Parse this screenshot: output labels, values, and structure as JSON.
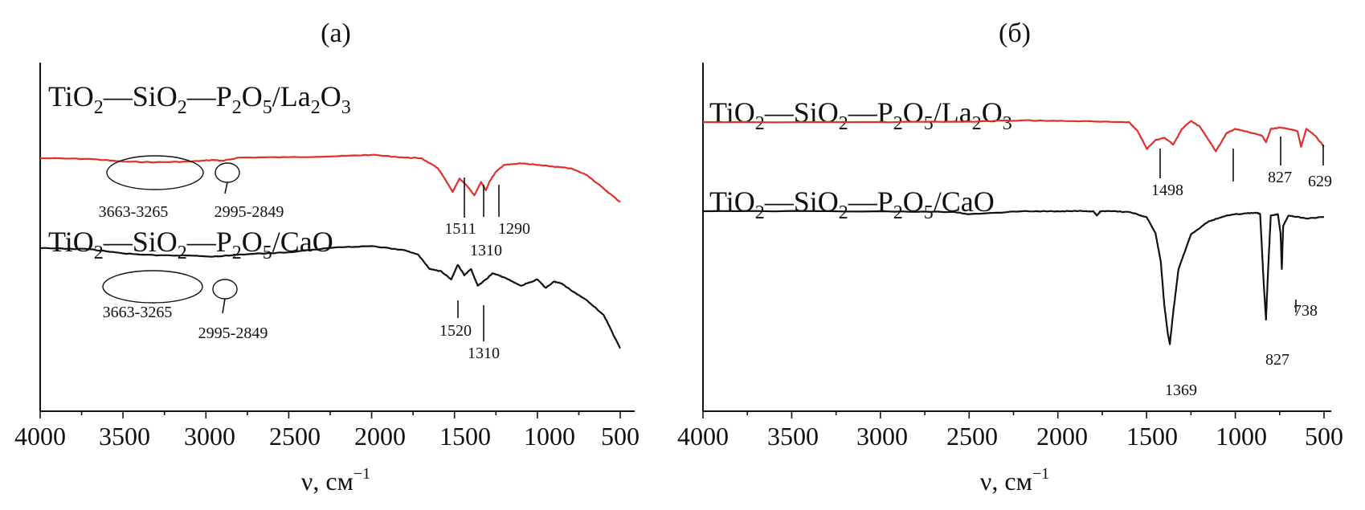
{
  "chart_data": [
    {
      "type": "line",
      "panel": "(a)",
      "xlabel": "ν, см⁻¹",
      "ylabel": "",
      "xlim": [
        4000,
        500
      ],
      "x_reversed": true,
      "y_ticks_shown": false,
      "ticks": [
        "4000",
        "3500",
        "3000",
        "2500",
        "2000",
        "1500",
        "1000",
        "500"
      ],
      "series": [
        {
          "name": "TiO2—SiO2—P2O5/La2O3",
          "color": "#e0302a",
          "x": [
            4000,
            3700,
            3500,
            3300,
            3100,
            2950,
            2900,
            2800,
            2500,
            2200,
            2000,
            1800,
            1700,
            1600,
            1560,
            1511,
            1470,
            1420,
            1380,
            1340,
            1310,
            1290,
            1250,
            1200,
            1100,
            1000,
            900,
            800,
            700,
            600,
            500
          ],
          "y": [
            0.0,
            -0.02,
            -0.1,
            -0.12,
            -0.1,
            -0.05,
            -0.08,
            0.02,
            0.03,
            0.06,
            0.1,
            0.02,
            0.0,
            -0.3,
            -0.6,
            -1.0,
            -0.6,
            -0.85,
            -1.1,
            -0.7,
            -0.95,
            -0.7,
            -0.4,
            -0.2,
            -0.15,
            -0.2,
            -0.25,
            -0.3,
            -0.5,
            -0.9,
            -1.3
          ]
        },
        {
          "name": "TiO2—SiO2—P2O5/CaO",
          "color": "#111111",
          "x": [
            4000,
            3700,
            3500,
            3300,
            3100,
            2950,
            2900,
            2800,
            2500,
            2200,
            2000,
            1800,
            1720,
            1650,
            1580,
            1520,
            1480,
            1440,
            1400,
            1360,
            1310,
            1270,
            1200,
            1100,
            1000,
            950,
            900,
            850,
            800,
            700,
            600,
            550,
            500
          ],
          "y": [
            0.0,
            -0.05,
            -0.25,
            -0.35,
            -0.35,
            -0.4,
            -0.38,
            -0.3,
            -0.2,
            0.05,
            0.1,
            -0.1,
            -0.3,
            -1.0,
            -1.1,
            -1.5,
            -0.8,
            -1.3,
            -1.0,
            -1.8,
            -1.5,
            -1.2,
            -1.4,
            -1.8,
            -1.5,
            -1.9,
            -1.6,
            -1.7,
            -2.0,
            -2.5,
            -3.2,
            -4.0,
            -4.8
          ]
        }
      ],
      "annotations": [
        {
          "text": "3663-3265",
          "series": "La2O3"
        },
        {
          "text": "2995-2849",
          "series": "La2O3"
        },
        {
          "text": "1511",
          "series": "La2O3"
        },
        {
          "text": "1310",
          "series": "La2O3"
        },
        {
          "text": "1290",
          "series": "La2O3"
        },
        {
          "text": "3663-3265",
          "series": "CaO"
        },
        {
          "text": "2995-2849",
          "series": "CaO"
        },
        {
          "text": "1520",
          "series": "CaO"
        },
        {
          "text": "1310",
          "series": "CaO"
        }
      ]
    },
    {
      "type": "line",
      "panel": "(б)",
      "xlabel": "ν, см⁻¹",
      "ylabel": "",
      "xlim": [
        4000,
        500
      ],
      "x_reversed": true,
      "y_ticks_shown": false,
      "ticks": [
        "4000",
        "3500",
        "3000",
        "2500",
        "2000",
        "1500",
        "1000",
        "500"
      ],
      "series": [
        {
          "name": "TiO2—SiO2—P2O5/La2O3",
          "color": "#e0302a",
          "x": [
            4000,
            3000,
            2500,
            2200,
            2000,
            1800,
            1600,
            1550,
            1498,
            1450,
            1400,
            1350,
            1300,
            1250,
            1200,
            1150,
            1110,
            1050,
            1000,
            950,
            900,
            850,
            827,
            800,
            750,
            700,
            650,
            629,
            600,
            550,
            500
          ],
          "y": [
            0.0,
            0.0,
            0.02,
            0.08,
            0.05,
            0.03,
            0.0,
            -0.4,
            -1.2,
            -0.8,
            -0.7,
            -1.0,
            -0.3,
            0.05,
            -0.2,
            -0.8,
            -1.3,
            -0.5,
            -0.3,
            -0.4,
            -0.5,
            -0.6,
            -0.9,
            -0.3,
            -0.25,
            -0.3,
            -0.4,
            -1.1,
            -0.3,
            -0.6,
            -1.1
          ]
        },
        {
          "name": "TiO2—SiO2—P2O5/CaO",
          "color": "#111111",
          "x": [
            4000,
            3000,
            2600,
            2500,
            2200,
            2000,
            1900,
            1800,
            1780,
            1760,
            1700,
            1600,
            1500,
            1450,
            1420,
            1400,
            1380,
            1369,
            1350,
            1320,
            1250,
            1150,
            1050,
            950,
            880,
            860,
            840,
            827,
            815,
            800,
            760,
            745,
            738,
            730,
            700,
            600,
            500
          ],
          "y": [
            0.0,
            0.0,
            -0.05,
            -0.2,
            0.0,
            0.0,
            0.02,
            0.0,
            -0.3,
            0.0,
            0.0,
            -0.05,
            -0.4,
            -1.5,
            -3.5,
            -6.5,
            -8.5,
            -9.2,
            -7.0,
            -4.0,
            -1.6,
            -0.7,
            -0.3,
            -0.15,
            -0.1,
            -0.2,
            -5.0,
            -7.5,
            -4.0,
            -0.3,
            -0.2,
            -1.5,
            -4.0,
            -1.0,
            -0.3,
            -0.5,
            -0.4
          ]
        }
      ],
      "annotations": [
        {
          "text": "1498",
          "series": "La2O3"
        },
        {
          "text": "827",
          "series": "La2O3"
        },
        {
          "text": "629",
          "series": "La2O3"
        },
        {
          "text": "1369",
          "series": "CaO"
        },
        {
          "text": "827",
          "series": "CaO"
        },
        {
          "text": "738",
          "series": "CaO"
        }
      ]
    }
  ],
  "panels": [
    {
      "title": "(a)",
      "xlabel_main": "ν, см",
      "xlabel_sup": "−1",
      "series_labels": {
        "la": {
          "p1": "TiO",
          "s1": "2",
          "p2": "—SiO",
          "s2": "2",
          "p3": "—P",
          "s3": "2",
          "p4": "O",
          "s4": "5",
          "p5": "/La",
          "s5": "2",
          "p6": "O",
          "s6": "3"
        },
        "ca": {
          "p1": "TiO",
          "s1": "2",
          "p2": "—SiO",
          "s2": "2",
          "p3": "—P",
          "s3": "2",
          "p4": "O",
          "s4": "5",
          "p5": "/CaO"
        }
      }
    },
    {
      "title": "(б)",
      "xlabel_main": "ν, см",
      "xlabel_sup": "−1",
      "series_labels": {
        "la": {
          "p1": "TiO",
          "s1": "2",
          "p2": "—SiO",
          "s2": "2",
          "p3": "—P",
          "s3": "2",
          "p4": "O",
          "s4": "5",
          "p5": "/La",
          "s5": "2",
          "p6": "O",
          "s6": "3"
        },
        "ca": {
          "p1": "TiO",
          "s1": "2",
          "p2": "—SiO",
          "s2": "2",
          "p3": "—P",
          "s3": "2",
          "p4": "O",
          "s4": "5",
          "p5": "/CaO"
        }
      }
    }
  ]
}
